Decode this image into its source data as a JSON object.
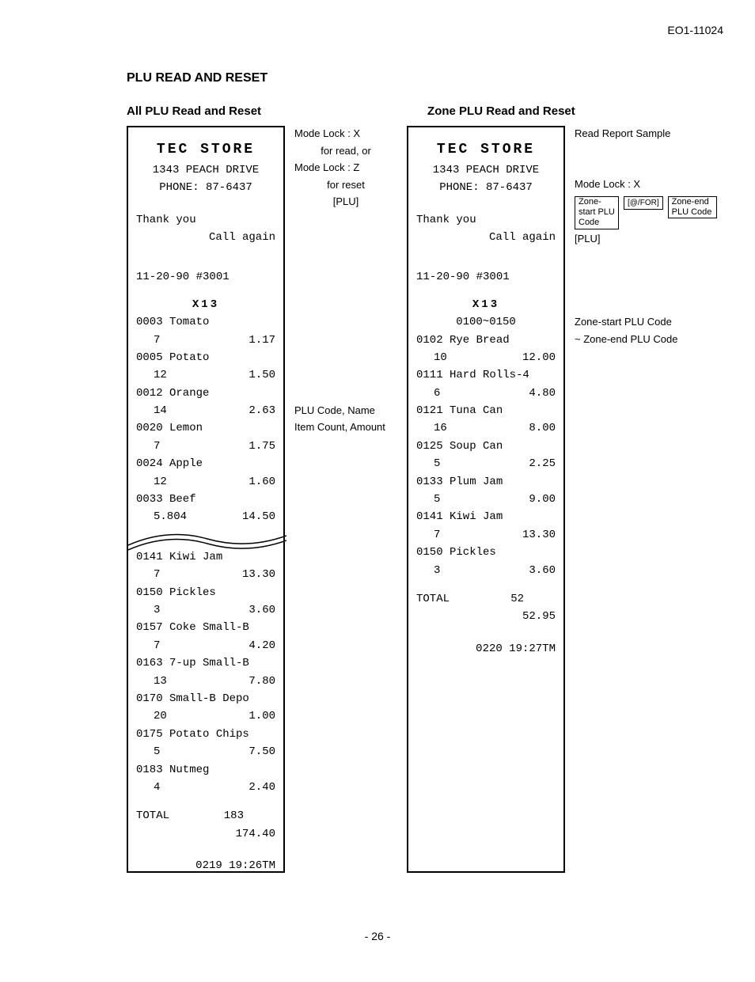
{
  "doc_id": "EO1-11024",
  "section_title": "PLU READ AND RESET",
  "left": {
    "subtitle": "All PLU Read and Reset",
    "store_name": "TEC STORE",
    "addr": "1343 PEACH DRIVE",
    "phone": "PHONE: 87-6437",
    "thank": "Thank you",
    "call": "Call again",
    "date": "11-20-90  #3001",
    "x13": "X13",
    "items_top": [
      {
        "name": "0003 Tomato",
        "count": "7",
        "amount": "1.17"
      },
      {
        "name": "0005 Potato",
        "count": "12",
        "amount": "1.50"
      },
      {
        "name": "0012 Orange",
        "count": "14",
        "amount": "2.63"
      },
      {
        "name": "0020 Lemon",
        "count": "7",
        "amount": "1.75"
      },
      {
        "name": "0024 Apple",
        "count": "12",
        "amount": "1.60"
      },
      {
        "name": "0033 Beef",
        "count": "5.804",
        "amount": "14.50"
      }
    ],
    "items_bottom": [
      {
        "name": "0141 Kiwi Jam",
        "count": "7",
        "amount": "13.30"
      },
      {
        "name": "0150 Pickles",
        "count": "3",
        "amount": "3.60"
      },
      {
        "name": "0157 Coke Small-B",
        "count": "7",
        "amount": "4.20"
      },
      {
        "name": "0163 7-up Small-B",
        "count": "13",
        "amount": "7.80"
      },
      {
        "name": "0170 Small-B Depo",
        "count": "20",
        "amount": "1.00"
      },
      {
        "name": "0175 Potato Chips",
        "count": "5",
        "amount": "7.50"
      },
      {
        "name": "0183 Nutmeg",
        "count": "4",
        "amount": "2.40"
      }
    ],
    "total_label": "TOTAL",
    "total_count": "183",
    "total_amount": "174.40",
    "ts": "0219 19:26TM",
    "notes": {
      "n1": "Mode Lock : X",
      "n2": "for read, or",
      "n3": "Mode Lock : Z",
      "n4": "for reset",
      "n5": "[PLU]",
      "n6": "PLU Code, Name",
      "n7": "Item Count, Amount"
    }
  },
  "right": {
    "subtitle": "Zone PLU Read and Reset",
    "store_name": "TEC STORE",
    "addr": "1343 PEACH DRIVE",
    "phone": "PHONE: 87-6437",
    "thank": "Thank you",
    "call": "Call again",
    "date": "11-20-90  #3001",
    "x13": "X13",
    "range": "0100~0150",
    "items": [
      {
        "name": "0102 Rye Bread",
        "count": "10",
        "amount": "12.00"
      },
      {
        "name": "0111 Hard Rolls-4",
        "count": "6",
        "amount": "4.80"
      },
      {
        "name": "0121 Tuna Can",
        "count": "16",
        "amount": "8.00"
      },
      {
        "name": "0125 Soup Can",
        "count": "5",
        "amount": "2.25"
      },
      {
        "name": "0133 Plum Jam",
        "count": "5",
        "amount": "9.00"
      },
      {
        "name": "0141 Kiwi Jam",
        "count": "7",
        "amount": "13.30"
      },
      {
        "name": "0150 Pickles",
        "count": "3",
        "amount": "3.60"
      }
    ],
    "total_label": "TOTAL",
    "total_count": "52",
    "total_amount": "52.95",
    "ts": "0220 19:27TM",
    "notes": {
      "n1": "Read Report Sample",
      "n2": "Mode Lock : X",
      "box1": "Zone-start PLU Code",
      "box2": "[@/FOR]",
      "box3": "Zone-end PLU Code",
      "n3": "[PLU]",
      "n4": "Zone-start PLU Code",
      "n5": "~ Zone-end PLU Code"
    }
  },
  "page_num": "- 26 -"
}
